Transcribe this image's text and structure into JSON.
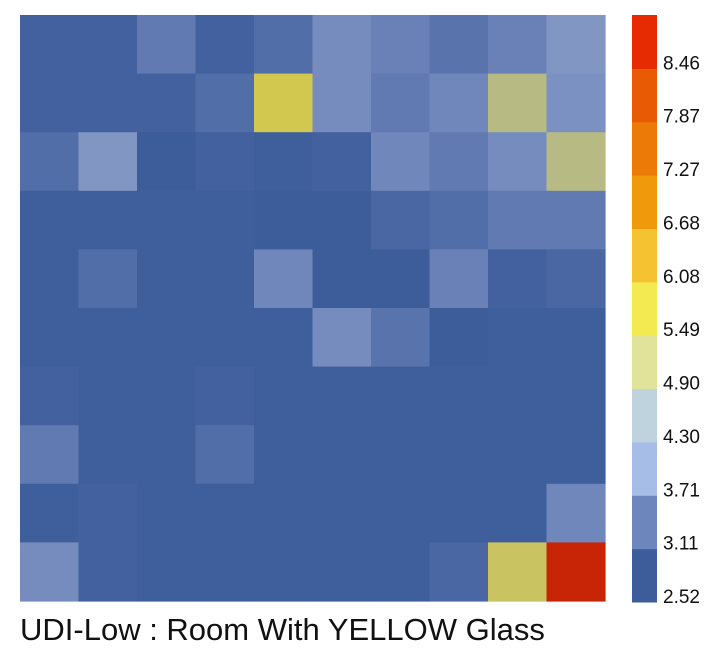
{
  "chart_data": {
    "type": "heatmap",
    "title": "UDI-Low : Room With YELLOW Glass",
    "rows": 10,
    "cols": 10,
    "values": [
      [
        2.6,
        2.6,
        3.0,
        2.6,
        2.8,
        3.3,
        3.1,
        2.9,
        3.1,
        3.5
      ],
      [
        2.6,
        2.6,
        2.6,
        2.8,
        5.3,
        3.3,
        3.0,
        3.2,
        4.7,
        3.4
      ],
      [
        2.8,
        3.5,
        2.5,
        2.6,
        2.55,
        2.6,
        3.2,
        3.0,
        3.3,
        4.7
      ],
      [
        2.55,
        2.55,
        2.55,
        2.55,
        2.5,
        2.5,
        2.7,
        2.8,
        3.0,
        3.0
      ],
      [
        2.55,
        2.8,
        2.55,
        2.55,
        3.2,
        2.5,
        2.5,
        3.1,
        2.6,
        2.7
      ],
      [
        2.55,
        2.55,
        2.55,
        2.55,
        2.55,
        3.3,
        2.9,
        2.5,
        2.55,
        2.55
      ],
      [
        2.6,
        2.55,
        2.55,
        2.6,
        2.55,
        2.55,
        2.55,
        2.55,
        2.55,
        2.55
      ],
      [
        3.0,
        2.55,
        2.55,
        2.8,
        2.55,
        2.55,
        2.55,
        2.55,
        2.55,
        2.55
      ],
      [
        2.55,
        2.6,
        2.55,
        2.55,
        2.55,
        2.55,
        2.55,
        2.55,
        2.55,
        3.2
      ],
      [
        3.3,
        2.6,
        2.55,
        2.55,
        2.55,
        2.55,
        2.55,
        2.7,
        5.1,
        8.9
      ]
    ],
    "colorbar": {
      "ticks": [
        "2.52",
        "3.11",
        "3.71",
        "4.30",
        "4.90",
        "5.49",
        "6.08",
        "6.68",
        "7.27",
        "7.87",
        "8.46"
      ],
      "bands": [
        "#3d5c9a",
        "#6d87bd",
        "#a6bde7",
        "#bfd3df",
        "#e1e39a",
        "#f3ea52",
        "#f5c231",
        "#f09a0b",
        "#ec7a07",
        "#e95a04",
        "#e62a02"
      ]
    },
    "min": 2.52,
    "max": 9.05
  }
}
